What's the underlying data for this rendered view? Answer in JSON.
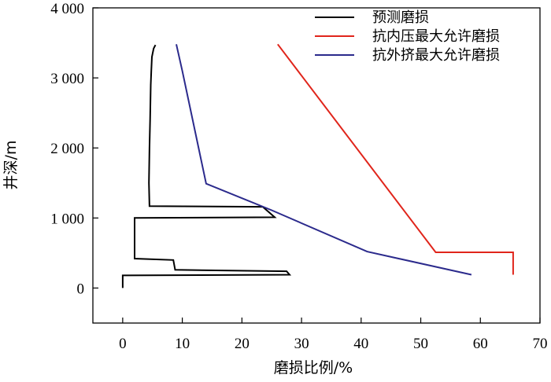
{
  "chart_data": {
    "type": "line",
    "xlabel": "磨损比例/%",
    "ylabel": "井深/m",
    "xlim": [
      -5,
      70
    ],
    "ylim": [
      -500,
      4000
    ],
    "xticks": [
      0,
      10,
      20,
      30,
      40,
      50,
      60,
      70
    ],
    "xtick_labels": [
      "0",
      "10",
      "20",
      "30",
      "40",
      "50",
      "60",
      "70"
    ],
    "yticks": [
      0,
      1000,
      2000,
      3000,
      4000
    ],
    "ytick_labels": [
      "0",
      "1 000",
      "2 000",
      "3 000",
      "4 000"
    ],
    "grid": false,
    "legend_position": "top-right",
    "series": [
      {
        "name": "预测磨损",
        "color": "#000000",
        "points": [
          [
            5.5,
            3470
          ],
          [
            5.2,
            3420
          ],
          [
            4.9,
            3300
          ],
          [
            4.8,
            3100
          ],
          [
            4.7,
            2900
          ],
          [
            4.6,
            2400
          ],
          [
            4.5,
            2000
          ],
          [
            4.4,
            1500
          ],
          [
            4.5,
            1170
          ],
          [
            23.5,
            1160
          ],
          [
            25.5,
            1010
          ],
          [
            2.0,
            1000
          ],
          [
            2.0,
            420
          ],
          [
            8.5,
            400
          ],
          [
            8.8,
            260
          ],
          [
            27.5,
            240
          ],
          [
            28.0,
            190
          ],
          [
            0.0,
            180
          ],
          [
            0.0,
            0
          ]
        ]
      },
      {
        "name": "抗内压最大允许磨损",
        "color": "#e0251b",
        "points": [
          [
            26.0,
            3480
          ],
          [
            52.5,
            510
          ],
          [
            65.5,
            510
          ],
          [
            65.5,
            190
          ]
        ]
      },
      {
        "name": "抗外挤最大允许磨损",
        "color": "#2b2a8c",
        "points": [
          [
            9.0,
            3480
          ],
          [
            10.0,
            3100
          ],
          [
            14.0,
            1490
          ],
          [
            25.0,
            1110
          ],
          [
            41.0,
            520
          ],
          [
            58.5,
            190
          ]
        ]
      }
    ]
  }
}
